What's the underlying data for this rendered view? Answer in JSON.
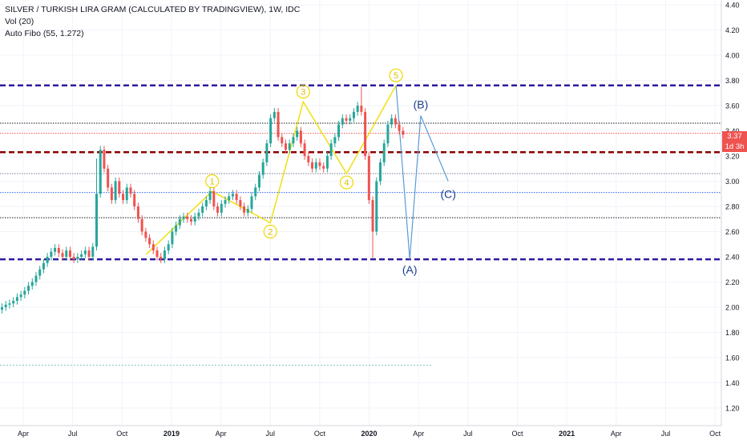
{
  "legend": {
    "symbol_line": "SILVER / TURKISH LIRA GRAM (CALCULATED BY TRADINGVIEW), 1W, IDC",
    "indicator1": "Vol (20)",
    "indicator2": "Auto Fibo (55, 1.272)"
  },
  "price_tags": {
    "last_price": "3.37",
    "countdown": "1d 3h",
    "color": "#ef5350"
  },
  "chart_data": {
    "type": "candlestick",
    "title": "SILVER / TURKISH LIRA GRAM (CALCULATED BY TRADINGVIEW), 1W, IDC",
    "y_axis": {
      "side": "right",
      "range": [
        1.1,
        4.45
      ],
      "ticks": [
        "4.40",
        "4.20",
        "4.00",
        "3.80",
        "3.60",
        "3.40",
        "3.20",
        "3.00",
        "2.80",
        "2.60",
        "2.40",
        "2.20",
        "2.00",
        "1.80",
        "1.60",
        "1.40",
        "1.20"
      ]
    },
    "x_axis": {
      "ticks": [
        "Apr",
        "Jul",
        "Oct",
        "2019",
        "Apr",
        "Jul",
        "Oct",
        "2020",
        "Apr",
        "Jul",
        "Oct",
        "2021",
        "Apr",
        "Jul",
        "Oct"
      ],
      "range": [
        "2018-02",
        "2021-11"
      ]
    },
    "colors": {
      "up": "#26a69a",
      "down": "#ef5350",
      "grid": "#f0f3fa"
    },
    "candles_close": [
      2.0,
      2.02,
      2.03,
      2.05,
      2.08,
      2.1,
      2.13,
      2.17,
      2.2,
      2.25,
      2.3,
      2.35,
      2.4,
      2.44,
      2.47,
      2.43,
      2.4,
      2.45,
      2.4,
      2.38,
      2.4,
      2.42,
      2.45,
      2.4,
      2.48,
      2.9,
      3.25,
      3.1,
      2.95,
      2.85,
      3.0,
      2.9,
      2.85,
      2.95,
      2.9,
      2.8,
      2.7,
      2.6,
      2.55,
      2.5,
      2.45,
      2.4,
      2.38,
      2.45,
      2.5,
      2.6,
      2.65,
      2.7,
      2.72,
      2.7,
      2.68,
      2.72,
      2.75,
      2.8,
      2.85,
      2.92,
      2.8,
      2.75,
      2.82,
      2.85,
      2.88,
      2.9,
      2.85,
      2.8,
      2.75,
      2.78,
      2.88,
      2.95,
      3.05,
      3.15,
      3.3,
      3.5,
      3.55,
      3.35,
      3.3,
      3.25,
      3.3,
      3.35,
      3.4,
      3.3,
      3.2,
      3.15,
      3.1,
      3.15,
      3.12,
      3.1,
      3.2,
      3.3,
      3.35,
      3.45,
      3.5,
      3.48,
      3.5,
      3.55,
      3.6,
      3.55,
      3.2,
      2.85,
      2.6,
      3.0,
      3.15,
      3.3,
      3.45,
      3.5,
      3.45,
      3.4,
      3.37
    ],
    "candles_first_date": "2018-01",
    "last_price": 3.37,
    "horizontal_levels": [
      {
        "value": 3.76,
        "style": "dashed",
        "color": "#2e1a9e"
      },
      {
        "value": 3.46,
        "style": "dotted",
        "color": "#131722"
      },
      {
        "value": 3.38,
        "style": "dotted",
        "color": "#ef5350"
      },
      {
        "value": 3.23,
        "style": "dashed",
        "color": "#8b0000"
      },
      {
        "value": 3.06,
        "style": "dotted",
        "color": "#7b7b9a"
      },
      {
        "value": 2.91,
        "style": "dotted",
        "color": "#2962ff"
      },
      {
        "value": 2.71,
        "style": "dotted",
        "color": "#131722"
      },
      {
        "value": 2.38,
        "style": "dashed",
        "color": "#2e1a9e"
      }
    ],
    "elliott_impulse": [
      {
        "label": "1",
        "date": "2019-03-15",
        "price": 2.92,
        "label_price": 3.0
      },
      {
        "label": "2",
        "date": "2019-07-01",
        "price": 2.67,
        "label_price": 2.6
      },
      {
        "label": "3",
        "date": "2019-09-01",
        "price": 3.63,
        "label_price": 3.71
      },
      {
        "label": "4",
        "date": "2019-11-20",
        "price": 3.06,
        "label_price": 2.99
      },
      {
        "label": "5",
        "date": "2020-02-20",
        "price": 3.76,
        "label_price": 3.84
      }
    ],
    "impulse_start": {
      "date": "2018-11-15",
      "price": 2.42
    },
    "corrective": [
      {
        "label": "(A)",
        "date": "2020-03-15",
        "price": 2.38,
        "label_price": 2.3
      },
      {
        "label": "(B)",
        "date": "2020-04-05",
        "price": 3.52,
        "label_price": 3.61
      },
      {
        "label": "(C)",
        "date": "2020-05-25",
        "price": 3.0,
        "label_price": 2.9
      }
    ],
    "volume_ma_level": 1.54
  }
}
